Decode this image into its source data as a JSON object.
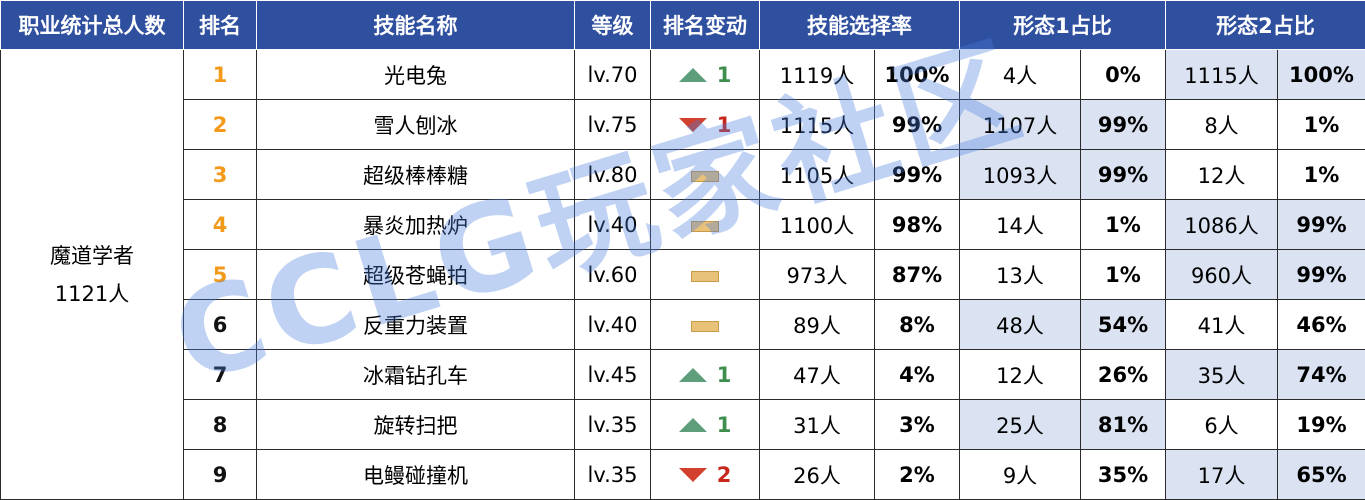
{
  "headers": [
    "职业统计总人数",
    "排名",
    "技能名称",
    "等级",
    "排名变动",
    "技能选择率",
    "形态1占比",
    "形态2占比"
  ],
  "job": {
    "name": "魔道学者",
    "count": "1121人"
  },
  "rows": [
    {
      "rank": "1",
      "skill": "光电兔",
      "level": "lv.70",
      "change": {
        "dir": "up",
        "n": "1"
      },
      "sel": "1119人",
      "selp": "100%",
      "f1": "4人",
      "f1p": "0%",
      "f2": "1115人",
      "f2p": "100%",
      "hl": "f2"
    },
    {
      "rank": "2",
      "skill": "雪人刨冰",
      "level": "lv.75",
      "change": {
        "dir": "down",
        "n": "1"
      },
      "sel": "1115人",
      "selp": "99%",
      "f1": "1107人",
      "f1p": "99%",
      "f2": "8人",
      "f2p": "1%",
      "hl": "f1"
    },
    {
      "rank": "3",
      "skill": "超级棒棒糖",
      "level": "lv.80",
      "change": {
        "dir": "same",
        "n": ""
      },
      "sel": "1105人",
      "selp": "99%",
      "f1": "1093人",
      "f1p": "99%",
      "f2": "12人",
      "f2p": "1%",
      "hl": "f1"
    },
    {
      "rank": "4",
      "skill": "暴炎加热炉",
      "level": "lv.40",
      "change": {
        "dir": "same",
        "n": ""
      },
      "sel": "1100人",
      "selp": "98%",
      "f1": "14人",
      "f1p": "1%",
      "f2": "1086人",
      "f2p": "99%",
      "hl": "f2"
    },
    {
      "rank": "5",
      "skill": "超级苍蝇拍",
      "level": "lv.60",
      "change": {
        "dir": "same",
        "n": ""
      },
      "sel": "973人",
      "selp": "87%",
      "f1": "13人",
      "f1p": "1%",
      "f2": "960人",
      "f2p": "99%",
      "hl": "f2"
    },
    {
      "rank": "6",
      "skill": "反重力装置",
      "level": "lv.40",
      "change": {
        "dir": "same",
        "n": ""
      },
      "sel": "89人",
      "selp": "8%",
      "f1": "48人",
      "f1p": "54%",
      "f2": "41人",
      "f2p": "46%",
      "hl": "f1"
    },
    {
      "rank": "7",
      "skill": "冰霜钻孔车",
      "level": "lv.45",
      "change": {
        "dir": "up",
        "n": "1"
      },
      "sel": "47人",
      "selp": "4%",
      "f1": "12人",
      "f1p": "26%",
      "f2": "35人",
      "f2p": "74%",
      "hl": "f2"
    },
    {
      "rank": "8",
      "skill": "旋转扫把",
      "level": "lv.35",
      "change": {
        "dir": "up",
        "n": "1"
      },
      "sel": "31人",
      "selp": "3%",
      "f1": "25人",
      "f1p": "81%",
      "f2": "6人",
      "f2p": "19%",
      "hl": "f1"
    },
    {
      "rank": "9",
      "skill": "电鳗碰撞机",
      "level": "lv.35",
      "change": {
        "dir": "down",
        "n": "2"
      },
      "sel": "26人",
      "selp": "2%",
      "f1": "9人",
      "f1p": "35%",
      "f2": "17人",
      "f2p": "65%",
      "hl": "f2"
    }
  ],
  "watermark": "CCLG玩家社区"
}
